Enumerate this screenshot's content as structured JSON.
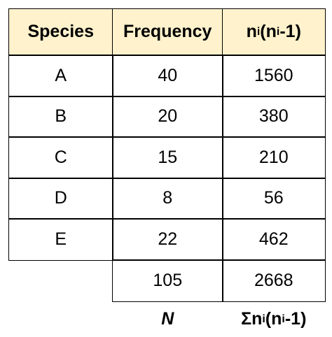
{
  "table": {
    "header": [
      {
        "segments": [
          {
            "text": "Species"
          }
        ]
      },
      {
        "segments": [
          {
            "text": "Frequency"
          }
        ]
      },
      {
        "segments": [
          {
            "text": "n"
          },
          {
            "text": "i",
            "sub": true
          },
          {
            "text": "(n"
          },
          {
            "text": "i",
            "sub": true
          },
          {
            "text": "-1)"
          }
        ]
      }
    ],
    "rows": [
      [
        "A",
        40,
        1560
      ],
      [
        "B",
        20,
        380
      ],
      [
        "C",
        15,
        210
      ],
      [
        "D",
        8,
        56
      ],
      [
        "E",
        22,
        462
      ]
    ],
    "total": [
      105,
      2668
    ],
    "footer": [
      {
        "segments": [
          {
            "text": "N",
            "italic": true
          }
        ]
      },
      {
        "segments": [
          {
            "text": "Σn"
          },
          {
            "text": "i",
            "sub": true
          },
          {
            "text": "(n"
          },
          {
            "text": "i",
            "sub": true
          },
          {
            "text": "-1)"
          }
        ]
      }
    ],
    "header_fill": "#fff2cc"
  }
}
